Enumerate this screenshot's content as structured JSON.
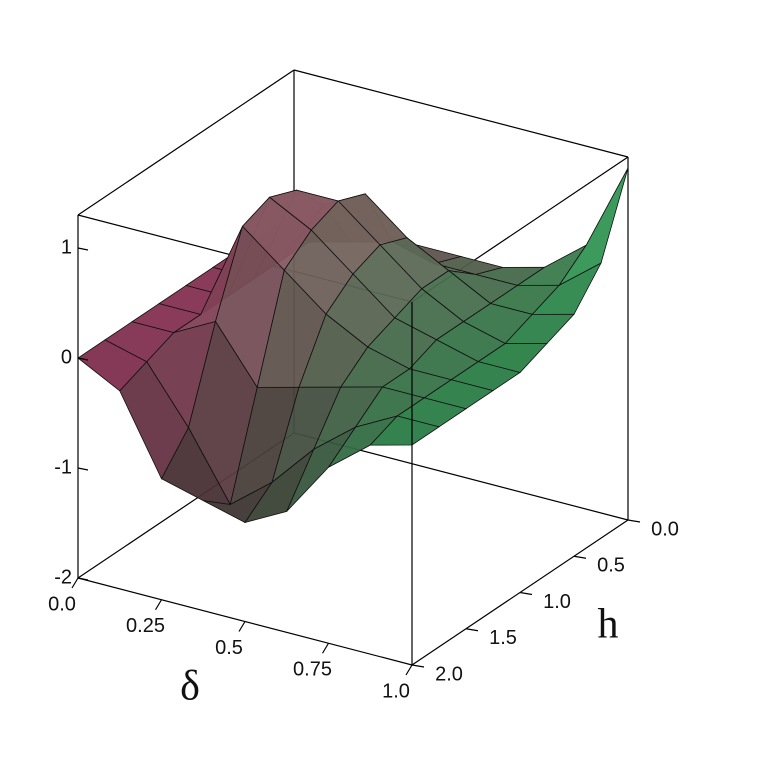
{
  "chart_data": {
    "type": "surface",
    "x_label": "δ",
    "y_label": "h",
    "x": [
      0,
      0.125,
      0.25,
      0.375,
      0.5,
      0.625,
      0.75,
      0.875,
      1
    ],
    "y": [
      0,
      0.25,
      0.5,
      0.75,
      1,
      1.25,
      1.5,
      1.75,
      2
    ],
    "z": [
      [
        0,
        0,
        0,
        0,
        0,
        0,
        0,
        0,
        0
      ],
      [
        0,
        0,
        0,
        0,
        0,
        0,
        0,
        -0.1,
        -0.2
      ],
      [
        0,
        0.1,
        0.6,
        0.9,
        1.0,
        0.9,
        0.2,
        -0.6,
        -0.9
      ],
      [
        0,
        0.2,
        0.8,
        0.9,
        0.8,
        0.6,
        -0.3,
        -1.2,
        -1.0
      ],
      [
        0,
        0.1,
        0.5,
        0.6,
        0.5,
        0.3,
        -0.2,
        -0.9,
        -1.1
      ],
      [
        0,
        0.1,
        0.3,
        0.3,
        0.2,
        0.1,
        -0.1,
        -0.5,
        -0.9
      ],
      [
        0.1,
        0.1,
        0.1,
        0.1,
        0.1,
        0,
        0,
        -0.2,
        -0.4
      ],
      [
        0.4,
        0.2,
        0.1,
        0,
        0,
        0,
        0,
        0,
        -0.1
      ],
      [
        1.2,
        0.5,
        0.2,
        0.1,
        0,
        0,
        0,
        0,
        0
      ]
    ],
    "colors": [
      "#b8386c",
      "#2fae5c"
    ],
    "xlim": [
      0,
      1
    ],
    "ylim": [
      0,
      2
    ],
    "zlim": [
      -2,
      1.3
    ],
    "xticks": [
      {
        "value": 0,
        "label": "0.0"
      },
      0.25,
      0.5,
      0.75,
      {
        "value": 1,
        "label": "1.0"
      }
    ],
    "yticks": [
      {
        "value": 0,
        "label": "0.0"
      },
      0.5,
      {
        "value": 1,
        "label": "1.0"
      },
      1.5,
      {
        "value": 2,
        "label": "2.0"
      }
    ],
    "zticks": [
      -2,
      -1,
      0,
      1
    ]
  }
}
